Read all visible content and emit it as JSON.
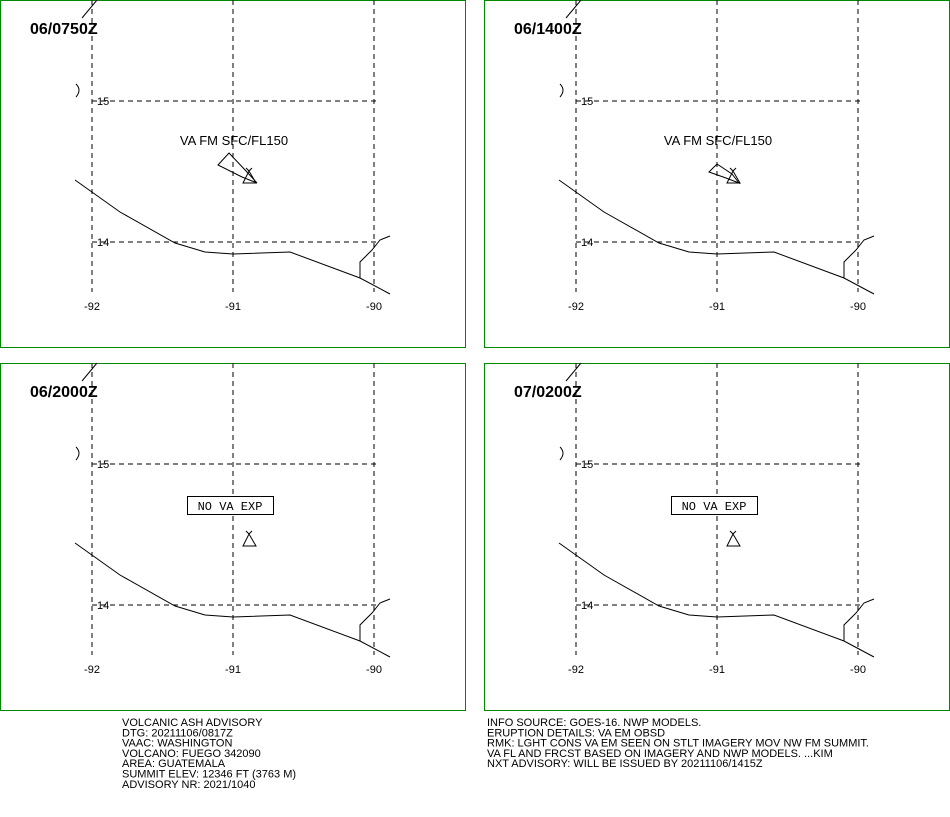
{
  "panels": [
    {
      "time": "06/0750Z",
      "annotation": "VA FM SFC/FL150"
    },
    {
      "time": "06/1400Z",
      "annotation": "VA FM SFC/FL150"
    },
    {
      "time": "06/2000Z",
      "annotation": "NO VA EXP"
    },
    {
      "time": "07/0200Z",
      "annotation": "NO VA EXP"
    }
  ],
  "longitudes": [
    "-92",
    "-91",
    "-90"
  ],
  "latitudes": [
    "15",
    "14"
  ],
  "advisory_left": [
    "VOLCANIC ASH ADVISORY",
    "DTG: 20211106/0817Z",
    "VAAC: WASHINGTON",
    "VOLCANO: FUEGO 342090",
    "AREA: GUATEMALA",
    "SUMMIT ELEV: 12346 FT (3763 M)",
    "ADVISORY NR: 2021/1040"
  ],
  "advisory_right": [
    "INFO SOURCE: GOES-16. NWP MODELS.",
    "ERUPTION DETAILS: VA EM OBSD",
    "RMK: LGHT CONS VA EM SEEN ON STLT IMAGERY MOV NW FM SUMMIT.",
    "VA FL AND FRCST BASED ON IMAGERY AND NWP MODELS. ...KIM",
    "NXT ADVISORY: WILL BE ISSUED BY 20211106/1415Z"
  ]
}
